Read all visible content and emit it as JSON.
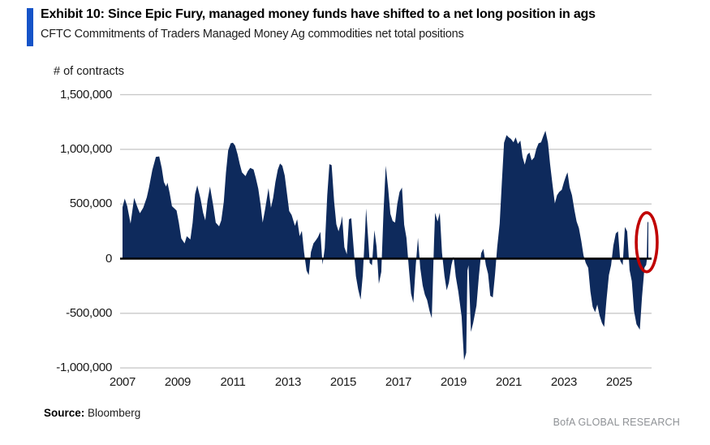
{
  "header": {
    "exhibit_title": "Exhibit 10: Since Epic Fury, managed money funds have shifted to a net long position in ags",
    "subtitle": "CFTC Commitments of Traders Managed Money Ag commodities net total positions"
  },
  "footer": {
    "source_label": "Source:",
    "source_value": " Bloomberg",
    "brand": "BofA GLOBAL RESEARCH"
  },
  "colors": {
    "accent_bar": "#1553C8",
    "area_fill": "#0E2A5C",
    "zero_line": "#000000",
    "gridline": "#C9C9C9",
    "highlight_circle": "#C00000",
    "brand_text": "#8F9296"
  },
  "chart_data": {
    "type": "area",
    "title": "",
    "unit_label": "# of contracts",
    "xlabel": "",
    "ylabel": "# of contracts",
    "ylim": [
      -1000000,
      1500000
    ],
    "x_range": [
      2007,
      2026.1
    ],
    "grid": "horizontal-only",
    "legend": "none",
    "y_axis": {
      "ticks": [
        {
          "label": "1,500,000",
          "value": 1500000
        },
        {
          "label": "1,000,000",
          "value": 1000000
        },
        {
          "label": "500,000",
          "value": 500000
        },
        {
          "label": "0",
          "value": 0
        },
        {
          "label": "-500,000",
          "value": -500000
        },
        {
          "label": "-1,000,000",
          "value": -1000000
        }
      ]
    },
    "x_axis": {
      "ticks": [
        {
          "label": "2007",
          "value": 2007
        },
        {
          "label": "2009",
          "value": 2009
        },
        {
          "label": "2011",
          "value": 2011
        },
        {
          "label": "2013",
          "value": 2013
        },
        {
          "label": "2015",
          "value": 2015
        },
        {
          "label": "2017",
          "value": 2017
        },
        {
          "label": "2019",
          "value": 2019
        },
        {
          "label": "2021",
          "value": 2021
        },
        {
          "label": "2023",
          "value": 2023
        },
        {
          "label": "2025",
          "value": 2025
        }
      ]
    },
    "annotation": {
      "shape": "ellipse",
      "x_year": 2026.0,
      "y_value": 150000,
      "rx_years": 0.38,
      "ry_value": 270000,
      "meaning": "latest net long spike circled in red"
    },
    "series": [
      {
        "name": "Managed Money Ag commodities net total positions",
        "points": [
          [
            2007.0,
            470000
          ],
          [
            2007.08,
            550000
          ],
          [
            2007.17,
            480000
          ],
          [
            2007.29,
            320000
          ],
          [
            2007.42,
            555000
          ],
          [
            2007.54,
            470000
          ],
          [
            2007.63,
            415000
          ],
          [
            2007.75,
            465000
          ],
          [
            2007.88,
            560000
          ],
          [
            2007.96,
            650000
          ],
          [
            2008.08,
            810000
          ],
          [
            2008.21,
            930000
          ],
          [
            2008.33,
            935000
          ],
          [
            2008.42,
            830000
          ],
          [
            2008.5,
            700000
          ],
          [
            2008.58,
            660000
          ],
          [
            2008.63,
            695000
          ],
          [
            2008.71,
            600000
          ],
          [
            2008.79,
            480000
          ],
          [
            2008.88,
            460000
          ],
          [
            2008.96,
            440000
          ],
          [
            2009.04,
            330000
          ],
          [
            2009.13,
            185000
          ],
          [
            2009.25,
            140000
          ],
          [
            2009.33,
            205000
          ],
          [
            2009.46,
            175000
          ],
          [
            2009.54,
            330000
          ],
          [
            2009.63,
            590000
          ],
          [
            2009.71,
            670000
          ],
          [
            2009.83,
            545000
          ],
          [
            2009.92,
            420000
          ],
          [
            2010.0,
            350000
          ],
          [
            2010.08,
            530000
          ],
          [
            2010.17,
            660000
          ],
          [
            2010.29,
            480000
          ],
          [
            2010.38,
            330000
          ],
          [
            2010.5,
            295000
          ],
          [
            2010.58,
            350000
          ],
          [
            2010.67,
            520000
          ],
          [
            2010.75,
            790000
          ],
          [
            2010.83,
            990000
          ],
          [
            2010.92,
            1055000
          ],
          [
            2011.0,
            1060000
          ],
          [
            2011.08,
            1035000
          ],
          [
            2011.17,
            955000
          ],
          [
            2011.25,
            865000
          ],
          [
            2011.33,
            790000
          ],
          [
            2011.46,
            755000
          ],
          [
            2011.54,
            800000
          ],
          [
            2011.63,
            830000
          ],
          [
            2011.75,
            815000
          ],
          [
            2011.83,
            740000
          ],
          [
            2011.92,
            640000
          ],
          [
            2012.0,
            500000
          ],
          [
            2012.08,
            330000
          ],
          [
            2012.17,
            455000
          ],
          [
            2012.29,
            645000
          ],
          [
            2012.38,
            465000
          ],
          [
            2012.46,
            555000
          ],
          [
            2012.54,
            700000
          ],
          [
            2012.63,
            815000
          ],
          [
            2012.71,
            870000
          ],
          [
            2012.79,
            850000
          ],
          [
            2012.88,
            760000
          ],
          [
            2012.96,
            600000
          ],
          [
            2013.04,
            435000
          ],
          [
            2013.13,
            400000
          ],
          [
            2013.25,
            300000
          ],
          [
            2013.33,
            360000
          ],
          [
            2013.42,
            205000
          ],
          [
            2013.5,
            255000
          ],
          [
            2013.58,
            60000
          ],
          [
            2013.67,
            -110000
          ],
          [
            2013.75,
            -150000
          ],
          [
            2013.83,
            60000
          ],
          [
            2013.92,
            140000
          ],
          [
            2014.0,
            165000
          ],
          [
            2014.08,
            195000
          ],
          [
            2014.17,
            245000
          ],
          [
            2014.25,
            -55000
          ],
          [
            2014.33,
            95000
          ],
          [
            2014.42,
            580000
          ],
          [
            2014.5,
            865000
          ],
          [
            2014.58,
            855000
          ],
          [
            2014.67,
            520000
          ],
          [
            2014.75,
            315000
          ],
          [
            2014.83,
            250000
          ],
          [
            2014.92,
            330000
          ],
          [
            2014.96,
            390000
          ],
          [
            2015.04,
            105000
          ],
          [
            2015.13,
            40000
          ],
          [
            2015.21,
            360000
          ],
          [
            2015.29,
            370000
          ],
          [
            2015.38,
            90000
          ],
          [
            2015.46,
            -160000
          ],
          [
            2015.54,
            -280000
          ],
          [
            2015.63,
            -375000
          ],
          [
            2015.71,
            -150000
          ],
          [
            2015.79,
            250000
          ],
          [
            2015.83,
            460000
          ],
          [
            2015.92,
            120000
          ],
          [
            2015.96,
            -40000
          ],
          [
            2016.04,
            -60000
          ],
          [
            2016.13,
            260000
          ],
          [
            2016.21,
            110000
          ],
          [
            2016.29,
            -230000
          ],
          [
            2016.38,
            -120000
          ],
          [
            2016.46,
            420000
          ],
          [
            2016.54,
            850000
          ],
          [
            2016.63,
            640000
          ],
          [
            2016.71,
            410000
          ],
          [
            2016.79,
            345000
          ],
          [
            2016.88,
            330000
          ],
          [
            2016.96,
            500000
          ],
          [
            2017.04,
            610000
          ],
          [
            2017.13,
            650000
          ],
          [
            2017.21,
            310000
          ],
          [
            2017.29,
            190000
          ],
          [
            2017.38,
            -90000
          ],
          [
            2017.46,
            -320000
          ],
          [
            2017.54,
            -405000
          ],
          [
            2017.63,
            -60000
          ],
          [
            2017.71,
            190000
          ],
          [
            2017.79,
            -85000
          ],
          [
            2017.88,
            -245000
          ],
          [
            2017.96,
            -330000
          ],
          [
            2018.04,
            -380000
          ],
          [
            2018.13,
            -480000
          ],
          [
            2018.21,
            -545000
          ],
          [
            2018.29,
            150000
          ],
          [
            2018.33,
            420000
          ],
          [
            2018.42,
            340000
          ],
          [
            2018.5,
            420000
          ],
          [
            2018.58,
            55000
          ],
          [
            2018.67,
            -160000
          ],
          [
            2018.75,
            -290000
          ],
          [
            2018.83,
            -220000
          ],
          [
            2018.92,
            -60000
          ],
          [
            2019.0,
            20000
          ],
          [
            2019.08,
            -165000
          ],
          [
            2019.17,
            -300000
          ],
          [
            2019.29,
            -530000
          ],
          [
            2019.38,
            -930000
          ],
          [
            2019.46,
            -860000
          ],
          [
            2019.5,
            -110000
          ],
          [
            2019.54,
            -60000
          ],
          [
            2019.63,
            -670000
          ],
          [
            2019.71,
            -590000
          ],
          [
            2019.83,
            -430000
          ],
          [
            2019.92,
            -150000
          ],
          [
            2020.0,
            50000
          ],
          [
            2020.08,
            90000
          ],
          [
            2020.17,
            -60000
          ],
          [
            2020.25,
            -140000
          ],
          [
            2020.33,
            -340000
          ],
          [
            2020.42,
            -355000
          ],
          [
            2020.5,
            -150000
          ],
          [
            2020.58,
            100000
          ],
          [
            2020.67,
            320000
          ],
          [
            2020.75,
            700000
          ],
          [
            2020.83,
            1060000
          ],
          [
            2020.92,
            1130000
          ],
          [
            2021.0,
            1110000
          ],
          [
            2021.08,
            1095000
          ],
          [
            2021.17,
            1065000
          ],
          [
            2021.25,
            1110000
          ],
          [
            2021.33,
            1050000
          ],
          [
            2021.42,
            1080000
          ],
          [
            2021.5,
            930000
          ],
          [
            2021.58,
            860000
          ],
          [
            2021.67,
            950000
          ],
          [
            2021.75,
            970000
          ],
          [
            2021.83,
            900000
          ],
          [
            2021.92,
            925000
          ],
          [
            2022.0,
            1005000
          ],
          [
            2022.08,
            1055000
          ],
          [
            2022.17,
            1065000
          ],
          [
            2022.25,
            1120000
          ],
          [
            2022.33,
            1170000
          ],
          [
            2022.42,
            1060000
          ],
          [
            2022.5,
            860000
          ],
          [
            2022.58,
            690000
          ],
          [
            2022.67,
            505000
          ],
          [
            2022.75,
            580000
          ],
          [
            2022.83,
            610000
          ],
          [
            2022.92,
            630000
          ],
          [
            2023.0,
            700000
          ],
          [
            2023.08,
            760000
          ],
          [
            2023.13,
            790000
          ],
          [
            2023.21,
            650000
          ],
          [
            2023.29,
            580000
          ],
          [
            2023.38,
            445000
          ],
          [
            2023.46,
            340000
          ],
          [
            2023.54,
            280000
          ],
          [
            2023.63,
            160000
          ],
          [
            2023.71,
            30000
          ],
          [
            2023.79,
            -40000
          ],
          [
            2023.88,
            -85000
          ],
          [
            2023.96,
            -300000
          ],
          [
            2024.04,
            -440000
          ],
          [
            2024.13,
            -490000
          ],
          [
            2024.21,
            -420000
          ],
          [
            2024.29,
            -520000
          ],
          [
            2024.38,
            -590000
          ],
          [
            2024.46,
            -625000
          ],
          [
            2024.54,
            -380000
          ],
          [
            2024.63,
            -150000
          ],
          [
            2024.71,
            -60000
          ],
          [
            2024.79,
            120000
          ],
          [
            2024.88,
            230000
          ],
          [
            2024.96,
            250000
          ],
          [
            2025.04,
            -20000
          ],
          [
            2025.13,
            -60000
          ],
          [
            2025.21,
            290000
          ],
          [
            2025.29,
            250000
          ],
          [
            2025.38,
            -105000
          ],
          [
            2025.46,
            -205000
          ],
          [
            2025.54,
            -480000
          ],
          [
            2025.63,
            -600000
          ],
          [
            2025.75,
            -650000
          ],
          [
            2025.83,
            -350000
          ],
          [
            2025.92,
            -80000
          ],
          [
            2025.98,
            -57000
          ],
          [
            2026.0,
            -20000
          ],
          [
            2026.03,
            330000
          ],
          [
            2026.06,
            340000
          ]
        ]
      }
    ]
  }
}
